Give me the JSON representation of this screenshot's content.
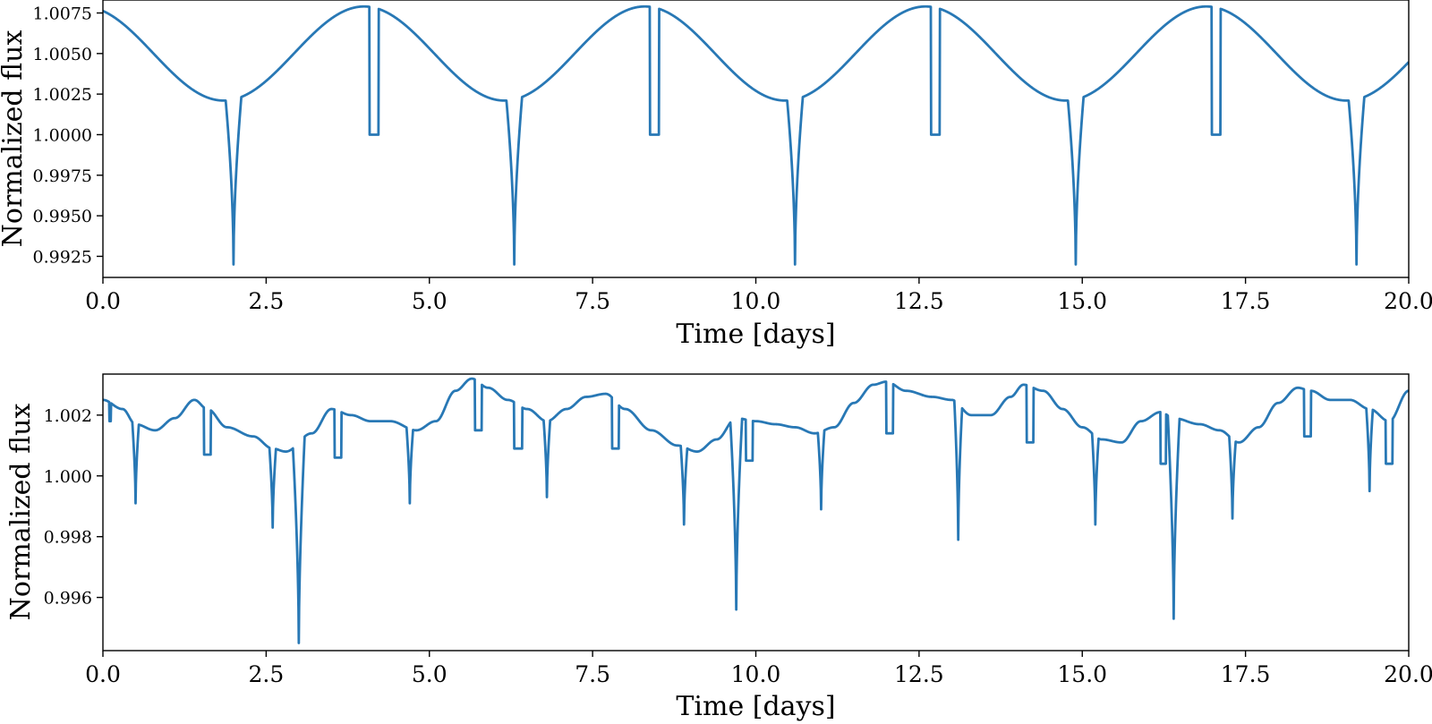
{
  "chart_data": [
    {
      "type": "line",
      "title": "",
      "xlabel": "Time [days]",
      "ylabel": "Normalized flux",
      "xlim": [
        0,
        20
      ],
      "ylim": [
        0.9912,
        1.0083
      ],
      "grid": false,
      "legend": "none",
      "color": "#2878b5",
      "xticks": [
        0,
        2.5,
        5,
        7.5,
        10,
        12.5,
        15,
        17.5,
        20
      ],
      "xtick_labels": [
        "0.0",
        "2.5",
        "5.0",
        "7.5",
        "10.0",
        "12.5",
        "15.0",
        "17.5",
        "20.0"
      ],
      "yticks": [
        0.9925,
        0.995,
        0.9975,
        1.0,
        1.0025,
        1.005,
        1.0075
      ],
      "ytick_labels": [
        "0.9925",
        "0.9950",
        "0.9975",
        "1.0000",
        "1.0025",
        "1.0050",
        "1.0075"
      ],
      "model": {
        "baseline_center": 1.005,
        "baseline_amplitude": 0.0029,
        "period_days": 4.3,
        "baseline_phase_offset": 0.3,
        "primary_eclipses": {
          "times": [
            2.0,
            6.3,
            10.6,
            14.9,
            19.2
          ],
          "depth_to": 0.992,
          "half_width": 0.12
        },
        "secondary_eclipses": {
          "times": [
            4.15,
            8.45,
            12.75,
            17.05
          ],
          "flat_to": 1.0,
          "half_width": 0.07
        }
      }
    },
    {
      "type": "line",
      "title": "",
      "xlabel": "Time [days]",
      "ylabel": "Normalized flux",
      "xlim": [
        0,
        20
      ],
      "ylim": [
        0.99425,
        1.00335
      ],
      "grid": false,
      "legend": "none",
      "color": "#2878b5",
      "xticks": [
        0,
        2.5,
        5,
        7.5,
        10,
        12.5,
        15,
        17.5,
        20
      ],
      "xtick_labels": [
        "0.0",
        "2.5",
        "5.0",
        "7.5",
        "10.0",
        "12.5",
        "15.0",
        "17.5",
        "20.0"
      ],
      "yticks": [
        0.996,
        0.998,
        1.0,
        1.002
      ],
      "ytick_labels": [
        "0.996",
        "0.998",
        "1.000",
        "1.002"
      ],
      "baseline_knots": {
        "x": [
          0,
          0.3,
          0.5,
          0.8,
          1.1,
          1.4,
          1.6,
          1.9,
          2.3,
          2.6,
          2.8,
          3.2,
          3.5,
          3.8,
          4.1,
          4.4,
          4.8,
          5.1,
          5.4,
          5.65,
          5.9,
          6.2,
          6.5,
          6.8,
          7.1,
          7.4,
          7.7,
          8.0,
          8.4,
          8.8,
          9.1,
          9.4,
          9.7,
          10.0,
          10.3,
          10.6,
          10.9,
          11.2,
          11.5,
          11.8,
          12.0,
          12.3,
          12.7,
          13.0,
          13.3,
          13.6,
          13.9,
          14.1,
          14.4,
          14.7,
          15.0,
          15.3,
          15.6,
          15.9,
          16.2,
          16.4,
          16.8,
          17.1,
          17.4,
          17.7,
          18.0,
          18.3,
          18.5,
          18.8,
          19.1,
          19.4,
          19.7,
          20.0
        ],
        "y": [
          1.0025,
          1.0022,
          1.0017,
          1.0015,
          1.0019,
          1.0025,
          1.0022,
          1.0016,
          1.0013,
          1.0009,
          1.0008,
          1.0014,
          1.0022,
          1.002,
          1.0018,
          1.0018,
          1.0015,
          1.0018,
          1.0028,
          1.0032,
          1.0029,
          1.0025,
          1.0022,
          1.0018,
          1.0022,
          1.0026,
          1.0027,
          1.0022,
          1.0015,
          1.001,
          1.0008,
          1.0012,
          1.0019,
          1.0018,
          1.0017,
          1.0016,
          1.0014,
          1.0016,
          1.0024,
          1.003,
          1.0031,
          1.0028,
          1.0026,
          1.0025,
          1.002,
          1.002,
          1.0026,
          1.003,
          1.0028,
          1.0022,
          1.0016,
          1.0012,
          1.0011,
          1.0018,
          1.0021,
          1.0019,
          1.0017,
          1.0015,
          1.0011,
          1.0016,
          1.0024,
          1.0029,
          1.0028,
          1.0025,
          1.0025,
          1.0022,
          1.0018,
          1.0028
        ]
      },
      "dips": [
        {
          "x": 0.5,
          "depth": 0.9991,
          "half_width": 0.05
        },
        {
          "x": 2.6,
          "depth": 0.9983,
          "half_width": 0.05
        },
        {
          "x": 3.0,
          "depth": 0.9945,
          "half_width": 0.09
        },
        {
          "x": 4.7,
          "depth": 0.9991,
          "half_width": 0.05
        },
        {
          "x": 6.8,
          "depth": 0.9993,
          "half_width": 0.05
        },
        {
          "x": 8.9,
          "depth": 0.9984,
          "half_width": 0.05
        },
        {
          "x": 9.7,
          "depth": 0.9956,
          "half_width": 0.09
        },
        {
          "x": 11.0,
          "depth": 0.9989,
          "half_width": 0.05
        },
        {
          "x": 13.1,
          "depth": 0.9979,
          "half_width": 0.06
        },
        {
          "x": 15.2,
          "depth": 0.9984,
          "half_width": 0.05
        },
        {
          "x": 16.4,
          "depth": 0.9953,
          "half_width": 0.09
        },
        {
          "x": 17.3,
          "depth": 0.9986,
          "half_width": 0.05
        },
        {
          "x": 19.4,
          "depth": 0.9995,
          "half_width": 0.05
        }
      ],
      "box_drops": [
        {
          "start": 0.1,
          "end": 0.12,
          "to": 1.0018
        },
        {
          "start": 1.55,
          "end": 1.65,
          "to": 1.0007
        },
        {
          "start": 3.55,
          "end": 3.65,
          "to": 1.0006
        },
        {
          "start": 5.7,
          "end": 5.8,
          "to": 1.0015
        },
        {
          "start": 6.3,
          "end": 6.42,
          "to": 1.0009
        },
        {
          "start": 7.8,
          "end": 7.9,
          "to": 1.0009
        },
        {
          "start": 9.85,
          "end": 9.95,
          "to": 1.0005
        },
        {
          "start": 12.0,
          "end": 12.1,
          "to": 1.0014
        },
        {
          "start": 14.15,
          "end": 14.25,
          "to": 1.0011
        },
        {
          "start": 16.2,
          "end": 16.28,
          "to": 1.0004
        },
        {
          "start": 18.4,
          "end": 18.5,
          "to": 1.0013
        },
        {
          "start": 19.65,
          "end": 19.75,
          "to": 1.0004
        }
      ]
    }
  ]
}
